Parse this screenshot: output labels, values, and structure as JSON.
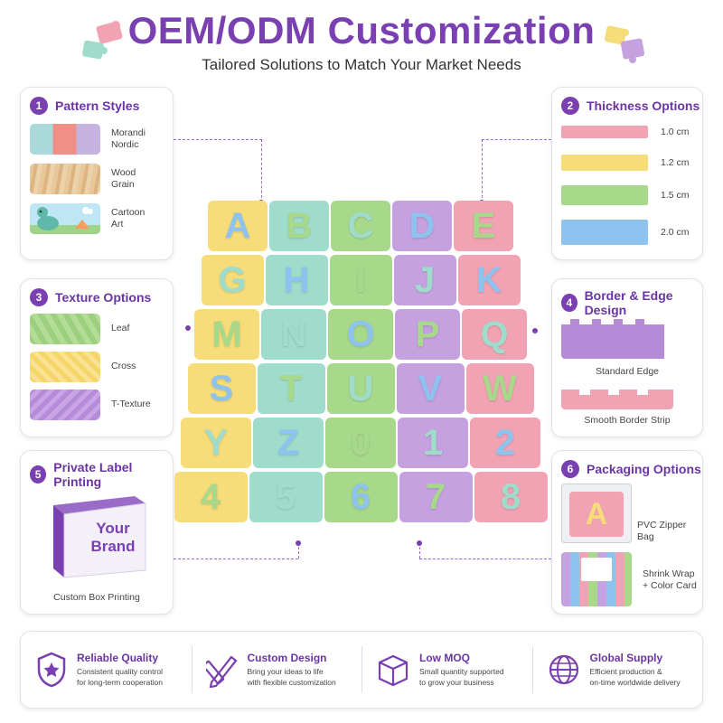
{
  "header": {
    "title": "OEM/ODM Customization",
    "subtitle": "Tailored Solutions to Match Your Market Needs"
  },
  "colors": {
    "accent": "#7a3fb0",
    "pink": "#f2a3b3",
    "yellow": "#f7dc7a",
    "green": "#a8d98a",
    "blue": "#8ec3ef",
    "purple": "#c5a1e0",
    "mint": "#9fdccb"
  },
  "pattern_styles": {
    "num": "1",
    "title": "Pattern Styles",
    "items": [
      {
        "label": "Morandi\nNordic"
      },
      {
        "label": "Wood\nGrain"
      },
      {
        "label": "Cartoon\nArt"
      }
    ]
  },
  "thickness": {
    "num": "2",
    "title": "Thickness Options",
    "items": [
      {
        "label": "1.0 cm"
      },
      {
        "label": "1.2 cm"
      },
      {
        "label": "1.5 cm"
      },
      {
        "label": "2.0 cm"
      }
    ]
  },
  "texture": {
    "num": "3",
    "title": "Texture Options",
    "items": [
      {
        "label": "Leaf"
      },
      {
        "label": "Cross"
      },
      {
        "label": "T-Texture"
      }
    ]
  },
  "border": {
    "num": "4",
    "title": "Border & Edge Design",
    "items": [
      {
        "label": "Standard Edge"
      },
      {
        "label": "Smooth Border Strip"
      }
    ]
  },
  "private_label": {
    "num": "5",
    "title": "Private Label Printing",
    "box_text": "Your\nBrand",
    "caption": "Custom Box Printing"
  },
  "packaging": {
    "num": "6",
    "title": "Packaging Options",
    "bag_letter": "A",
    "items": [
      {
        "label": "PVC Zipper Bag"
      },
      {
        "label": "Shrink Wrap\n+ Color Card"
      }
    ]
  },
  "puzzle": {
    "tiles": [
      "A",
      "B",
      "C",
      "D",
      "E",
      "G",
      "H",
      "I",
      "J",
      "K",
      "M",
      "N",
      "O",
      "P",
      "Q",
      "S",
      "T",
      "U",
      "V",
      "W",
      "Y",
      "Z",
      "0",
      "1",
      "2",
      "4",
      "5",
      "6",
      "7",
      "8"
    ]
  },
  "features": [
    {
      "icon": "shield-star-icon",
      "title": "Reliable Quality",
      "desc": "Consistent quality control\nfor long-term cooperation"
    },
    {
      "icon": "pencil-ruler-icon",
      "title": "Custom Design",
      "desc": "Bring your ideas to life\nwith flexible customization"
    },
    {
      "icon": "box-icon",
      "title": "Low MOQ",
      "desc": "Small quantity supported\nto grow your business"
    },
    {
      "icon": "globe-icon",
      "title": "Global Supply",
      "desc": "Efficient production &\non-time worldwide delivery"
    }
  ]
}
